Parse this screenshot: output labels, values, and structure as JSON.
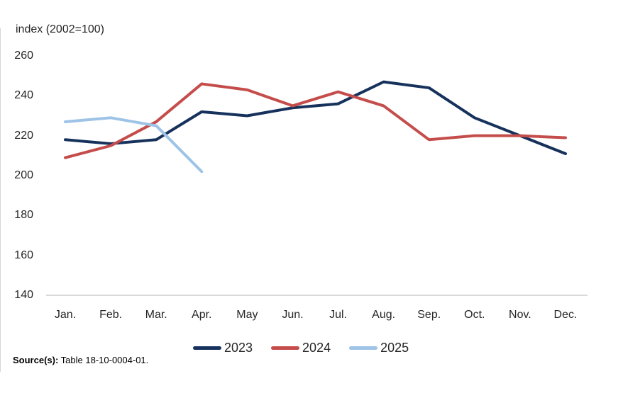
{
  "chart_data": {
    "type": "line",
    "axis_note": "index (2002=100)",
    "categories": [
      "Jan.",
      "Feb.",
      "Mar.",
      "Apr.",
      "May",
      "Jun.",
      "Jul.",
      "Aug.",
      "Sep.",
      "Oct.",
      "Nov.",
      "Dec."
    ],
    "series": [
      {
        "name": "2023",
        "color": "#16325c",
        "values": [
          218,
          216,
          218,
          232,
          230,
          234,
          236,
          247,
          244,
          229,
          220,
          211
        ]
      },
      {
        "name": "2024",
        "color": "#c44d4b",
        "values": [
          209,
          215,
          227,
          246,
          243,
          235,
          242,
          235,
          218,
          220,
          220,
          219
        ]
      },
      {
        "name": "2025",
        "color": "#9dc3e6",
        "values": [
          227,
          229,
          225,
          202
        ]
      }
    ],
    "ylim": [
      140,
      260
    ],
    "yticks": [
      260,
      240,
      220,
      200,
      180,
      160,
      140
    ],
    "grid": false,
    "legend_position": "bottom",
    "axis_line_color": "#d9d9d9"
  },
  "footer": {
    "source_label": "Source(s):",
    "source_text": " Table 18-10-0004-01."
  }
}
